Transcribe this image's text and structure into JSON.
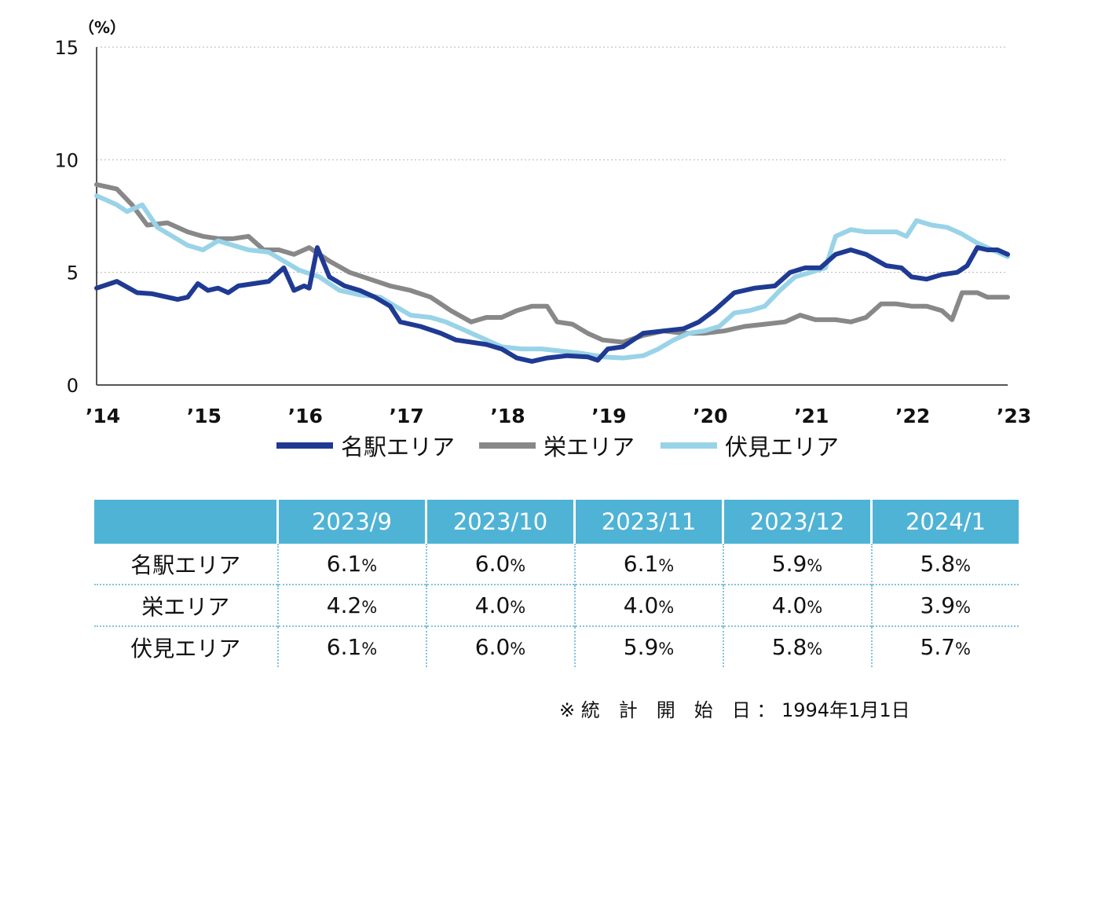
{
  "chart_data": {
    "type": "line",
    "unit_label": "（%）",
    "ylim": [
      0,
      15
    ],
    "y_ticks": [
      "15",
      "10",
      "5",
      "0"
    ],
    "x_ticks": [
      "'14",
      "'15",
      "'16",
      "'17",
      "'18",
      "'19",
      "'20",
      "'21",
      "'22",
      "'23"
    ],
    "xlim": [
      2014.0,
      2023.0
    ],
    "grid": "horizontal dotted",
    "legend_position": "bottom",
    "series": [
      {
        "name": "名駅エリア",
        "color": "#1f3a93",
        "points": [
          [
            2014.0,
            4.3
          ],
          [
            2014.2,
            4.6
          ],
          [
            2014.4,
            4.1
          ],
          [
            2014.55,
            4.05
          ],
          [
            2014.8,
            3.8
          ],
          [
            2014.9,
            3.9
          ],
          [
            2015.0,
            4.5
          ],
          [
            2015.1,
            4.2
          ],
          [
            2015.2,
            4.3
          ],
          [
            2015.3,
            4.1
          ],
          [
            2015.4,
            4.4
          ],
          [
            2015.55,
            4.5
          ],
          [
            2015.7,
            4.6
          ],
          [
            2015.85,
            5.2
          ],
          [
            2015.95,
            4.2
          ],
          [
            2016.05,
            4.4
          ],
          [
            2016.1,
            4.3
          ],
          [
            2016.18,
            6.1
          ],
          [
            2016.3,
            4.8
          ],
          [
            2016.45,
            4.4
          ],
          [
            2016.6,
            4.2
          ],
          [
            2016.75,
            3.9
          ],
          [
            2016.9,
            3.5
          ],
          [
            2017.0,
            2.8
          ],
          [
            2017.2,
            2.6
          ],
          [
            2017.4,
            2.3
          ],
          [
            2017.55,
            2.0
          ],
          [
            2017.7,
            1.9
          ],
          [
            2017.85,
            1.8
          ],
          [
            2018.0,
            1.6
          ],
          [
            2018.15,
            1.2
          ],
          [
            2018.3,
            1.05
          ],
          [
            2018.45,
            1.2
          ],
          [
            2018.65,
            1.3
          ],
          [
            2018.85,
            1.25
          ],
          [
            2018.95,
            1.1
          ],
          [
            2019.05,
            1.6
          ],
          [
            2019.2,
            1.7
          ],
          [
            2019.4,
            2.3
          ],
          [
            2019.6,
            2.4
          ],
          [
            2019.8,
            2.5
          ],
          [
            2019.95,
            2.8
          ],
          [
            2020.1,
            3.3
          ],
          [
            2020.3,
            4.1
          ],
          [
            2020.5,
            4.3
          ],
          [
            2020.7,
            4.4
          ],
          [
            2020.85,
            5.0
          ],
          [
            2021.0,
            5.2
          ],
          [
            2021.15,
            5.2
          ],
          [
            2021.3,
            5.8
          ],
          [
            2021.45,
            6.0
          ],
          [
            2021.6,
            5.8
          ],
          [
            2021.8,
            5.3
          ],
          [
            2021.95,
            5.2
          ],
          [
            2022.05,
            4.8
          ],
          [
            2022.2,
            4.7
          ],
          [
            2022.35,
            4.9
          ],
          [
            2022.5,
            5.0
          ],
          [
            2022.6,
            5.3
          ],
          [
            2022.7,
            6.1
          ],
          [
            2022.8,
            6.0
          ],
          [
            2022.9,
            6.0
          ],
          [
            2023.0,
            5.8
          ]
        ]
      },
      {
        "name": "栄エリア",
        "color": "#888888",
        "points": [
          [
            2014.0,
            8.9
          ],
          [
            2014.1,
            8.8
          ],
          [
            2014.2,
            8.7
          ],
          [
            2014.35,
            8.0
          ],
          [
            2014.5,
            7.1
          ],
          [
            2014.7,
            7.2
          ],
          [
            2014.9,
            6.8
          ],
          [
            2015.05,
            6.6
          ],
          [
            2015.2,
            6.5
          ],
          [
            2015.35,
            6.5
          ],
          [
            2015.5,
            6.6
          ],
          [
            2015.65,
            6.0
          ],
          [
            2015.8,
            6.0
          ],
          [
            2015.95,
            5.8
          ],
          [
            2016.1,
            6.1
          ],
          [
            2016.3,
            5.5
          ],
          [
            2016.5,
            5.0
          ],
          [
            2016.7,
            4.7
          ],
          [
            2016.9,
            4.4
          ],
          [
            2017.1,
            4.2
          ],
          [
            2017.3,
            3.9
          ],
          [
            2017.5,
            3.3
          ],
          [
            2017.7,
            2.8
          ],
          [
            2017.85,
            3.0
          ],
          [
            2018.0,
            3.0
          ],
          [
            2018.15,
            3.3
          ],
          [
            2018.3,
            3.5
          ],
          [
            2018.45,
            3.5
          ],
          [
            2018.55,
            2.8
          ],
          [
            2018.7,
            2.7
          ],
          [
            2018.85,
            2.3
          ],
          [
            2019.0,
            2.0
          ],
          [
            2019.2,
            1.9
          ],
          [
            2019.4,
            2.2
          ],
          [
            2019.6,
            2.4
          ],
          [
            2019.8,
            2.3
          ],
          [
            2020.0,
            2.3
          ],
          [
            2020.2,
            2.4
          ],
          [
            2020.4,
            2.6
          ],
          [
            2020.6,
            2.7
          ],
          [
            2020.8,
            2.8
          ],
          [
            2020.95,
            3.1
          ],
          [
            2021.1,
            2.9
          ],
          [
            2021.3,
            2.9
          ],
          [
            2021.45,
            2.8
          ],
          [
            2021.6,
            3.0
          ],
          [
            2021.75,
            3.6
          ],
          [
            2021.9,
            3.6
          ],
          [
            2022.05,
            3.5
          ],
          [
            2022.2,
            3.5
          ],
          [
            2022.35,
            3.3
          ],
          [
            2022.45,
            2.9
          ],
          [
            2022.55,
            4.1
          ],
          [
            2022.7,
            4.1
          ],
          [
            2022.8,
            3.9
          ],
          [
            2022.9,
            3.9
          ],
          [
            2023.0,
            3.9
          ]
        ]
      },
      {
        "name": "伏見エリア",
        "color": "#99d3e8",
        "points": [
          [
            2014.0,
            8.4
          ],
          [
            2014.1,
            8.2
          ],
          [
            2014.2,
            8.0
          ],
          [
            2014.3,
            7.7
          ],
          [
            2014.45,
            8.0
          ],
          [
            2014.6,
            7.0
          ],
          [
            2014.75,
            6.6
          ],
          [
            2014.9,
            6.2
          ],
          [
            2015.05,
            6.0
          ],
          [
            2015.2,
            6.4
          ],
          [
            2015.35,
            6.2
          ],
          [
            2015.5,
            6.0
          ],
          [
            2015.7,
            5.9
          ],
          [
            2015.85,
            5.5
          ],
          [
            2016.0,
            5.1
          ],
          [
            2016.2,
            4.8
          ],
          [
            2016.4,
            4.2
          ],
          [
            2016.6,
            4.0
          ],
          [
            2016.8,
            3.9
          ],
          [
            2016.95,
            3.5
          ],
          [
            2017.1,
            3.1
          ],
          [
            2017.3,
            3.0
          ],
          [
            2017.45,
            2.8
          ],
          [
            2017.6,
            2.5
          ],
          [
            2017.8,
            2.1
          ],
          [
            2018.0,
            1.7
          ],
          [
            2018.2,
            1.6
          ],
          [
            2018.4,
            1.6
          ],
          [
            2018.6,
            1.5
          ],
          [
            2018.8,
            1.4
          ],
          [
            2019.0,
            1.25
          ],
          [
            2019.2,
            1.2
          ],
          [
            2019.4,
            1.3
          ],
          [
            2019.55,
            1.6
          ],
          [
            2019.7,
            2.0
          ],
          [
            2019.85,
            2.3
          ],
          [
            2020.0,
            2.4
          ],
          [
            2020.15,
            2.6
          ],
          [
            2020.3,
            3.2
          ],
          [
            2020.45,
            3.3
          ],
          [
            2020.6,
            3.5
          ],
          [
            2020.75,
            4.2
          ],
          [
            2020.9,
            4.8
          ],
          [
            2021.05,
            5.0
          ],
          [
            2021.2,
            5.2
          ],
          [
            2021.3,
            6.6
          ],
          [
            2021.45,
            6.9
          ],
          [
            2021.6,
            6.8
          ],
          [
            2021.75,
            6.8
          ],
          [
            2021.9,
            6.8
          ],
          [
            2022.0,
            6.6
          ],
          [
            2022.1,
            7.3
          ],
          [
            2022.25,
            7.1
          ],
          [
            2022.4,
            7.0
          ],
          [
            2022.55,
            6.7
          ],
          [
            2022.7,
            6.3
          ],
          [
            2022.85,
            6.0
          ],
          [
            2023.0,
            5.7
          ]
        ]
      }
    ]
  },
  "table": {
    "headers": [
      "",
      "2023/9",
      "2023/10",
      "2023/11",
      "2023/12",
      "2024/1"
    ],
    "rows": [
      {
        "label": "名駅エリア",
        "values": [
          "6.1",
          "6.0",
          "6.1",
          "5.9",
          "5.8"
        ]
      },
      {
        "label": "栄エリア",
        "values": [
          "4.2",
          "4.0",
          "4.0",
          "4.0",
          "3.9"
        ]
      },
      {
        "label": "伏見エリア",
        "values": [
          "6.1",
          "6.0",
          "5.9",
          "5.8",
          "5.7"
        ]
      }
    ],
    "value_unit": "%"
  },
  "footnote": "※ 統　計　開　始　日 ： 1994年1月1日"
}
